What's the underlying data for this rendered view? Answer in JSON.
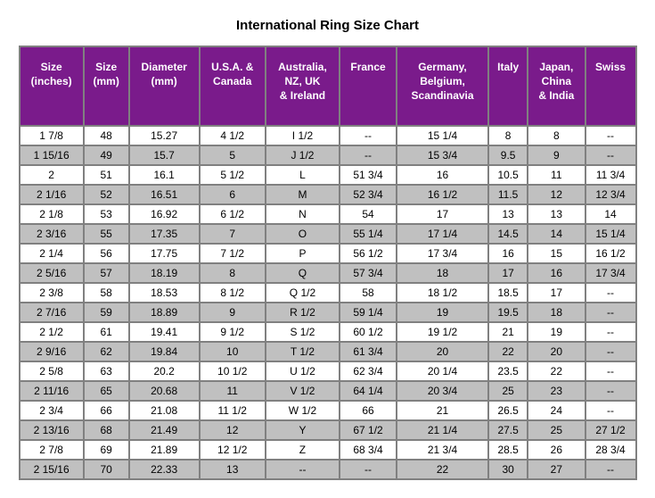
{
  "title": "International Ring Size Chart",
  "header_bg": "#7a1b8b",
  "header_fg": "#ffffff",
  "row_bg_even": "#ffffff",
  "row_bg_odd": "#c0c0c0",
  "border_color": "#808080",
  "columns": [
    "Size (inches)",
    "Size (mm)",
    "Diameter (mm)",
    "U.S.A. & Canada",
    "Australia, NZ, UK & Ireland",
    "France",
    "Germany, Belgium, Scandinavia",
    "Italy",
    "Japan, China & India",
    "Swiss"
  ],
  "rows": [
    [
      "1  7/8",
      "48",
      "15.27",
      "4  1/2",
      "I  1/2",
      "--",
      "15  1/4",
      "8",
      "8",
      "--"
    ],
    [
      "1 15/16",
      "49",
      "15.7",
      "5",
      "J  1/2",
      "--",
      "15  3/4",
      "9.5",
      "9",
      "--"
    ],
    [
      "2",
      "51",
      "16.1",
      "5  1/2",
      "L",
      "51  3/4",
      "16",
      "10.5",
      "11",
      "11  3/4"
    ],
    [
      "2  1/16",
      "52",
      "16.51",
      "6",
      "M",
      "52  3/4",
      "16  1/2",
      "11.5",
      "12",
      "12  3/4"
    ],
    [
      "2  1/8",
      "53",
      "16.92",
      "6  1/2",
      "N",
      "54",
      "17",
      "13",
      "13",
      "14"
    ],
    [
      "2  3/16",
      "55",
      "17.35",
      "7",
      "O",
      "55  1/4",
      "17  1/4",
      "14.5",
      "14",
      "15  1/4"
    ],
    [
      "2  1/4",
      "56",
      "17.75",
      "7  1/2",
      "P",
      "56  1/2",
      "17  3/4",
      "16",
      "15",
      "16  1/2"
    ],
    [
      "2  5/16",
      "57",
      "18.19",
      "8",
      "Q",
      "57  3/4",
      "18",
      "17",
      "16",
      "17  3/4"
    ],
    [
      "2  3/8",
      "58",
      "18.53",
      "8  1/2",
      "Q  1/2",
      "58",
      "18  1/2",
      "18.5",
      "17",
      "--"
    ],
    [
      "2  7/16",
      "59",
      "18.89",
      "9",
      "R  1/2",
      "59  1/4",
      "19",
      "19.5",
      "18",
      "--"
    ],
    [
      "2  1/2",
      "61",
      "19.41",
      "9  1/2",
      "S  1/2",
      "60  1/2",
      "19  1/2",
      "21",
      "19",
      "--"
    ],
    [
      "2  9/16",
      "62",
      "19.84",
      "10",
      "T  1/2",
      "61  3/4",
      "20",
      "22",
      "20",
      "--"
    ],
    [
      "2  5/8",
      "63",
      "20.2",
      "10  1/2",
      "U  1/2",
      "62  3/4",
      "20  1/4",
      "23.5",
      "22",
      "--"
    ],
    [
      "2 11/16",
      "65",
      "20.68",
      "11",
      "V  1/2",
      "64  1/4",
      "20  3/4",
      "25",
      "23",
      "--"
    ],
    [
      "2  3/4",
      "66",
      "21.08",
      "11  1/2",
      "W  1/2",
      "66",
      "21",
      "26.5",
      "24",
      "--"
    ],
    [
      "2 13/16",
      "68",
      "21.49",
      "12",
      "Y",
      "67  1/2",
      "21  1/4",
      "27.5",
      "25",
      "27  1/2"
    ],
    [
      "2  7/8",
      "69",
      "21.89",
      "12  1/2",
      "Z",
      "68  3/4",
      "21  3/4",
      "28.5",
      "26",
      "28  3/4"
    ],
    [
      "2 15/16",
      "70",
      "22.33",
      "13",
      "--",
      "--",
      "22",
      "30",
      "27",
      "--"
    ]
  ]
}
